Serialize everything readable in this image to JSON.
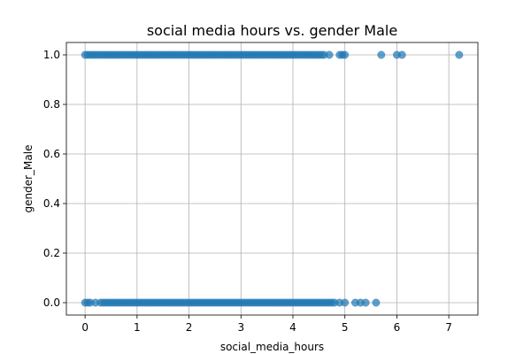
{
  "chart_data": {
    "type": "scatter",
    "title": "social media hours vs. gender Male",
    "xlabel": "social_media_hours",
    "ylabel": "gender_Male",
    "xlim": [
      -0.36,
      7.56
    ],
    "ylim": [
      -0.05,
      1.05
    ],
    "x_ticks": [
      0,
      1,
      2,
      3,
      4,
      5,
      6,
      7
    ],
    "y_ticks": [
      0.0,
      0.2,
      0.4,
      0.6,
      0.8,
      1.0
    ],
    "x_tick_labels": [
      "0",
      "1",
      "2",
      "3",
      "4",
      "5",
      "6",
      "7"
    ],
    "y_tick_labels": [
      "0.0",
      "0.2",
      "0.4",
      "0.6",
      "0.8",
      "1.0"
    ],
    "grid": true,
    "point_color": "#1f77b4",
    "point_alpha": 0.7,
    "series": [
      {
        "values_y": 1,
        "x": [
          0.0,
          0.05,
          0.1,
          0.15,
          0.2,
          0.25,
          0.3,
          0.35,
          0.4,
          0.45,
          0.5,
          0.55,
          0.6,
          0.65,
          0.7,
          0.75,
          0.8,
          0.85,
          0.9,
          0.95,
          1.0,
          1.05,
          1.1,
          1.15,
          1.2,
          1.25,
          1.3,
          1.35,
          1.4,
          1.45,
          1.5,
          1.55,
          1.6,
          1.65,
          1.7,
          1.75,
          1.8,
          1.85,
          1.9,
          1.95,
          2.0,
          2.05,
          2.1,
          2.15,
          2.2,
          2.25,
          2.3,
          2.35,
          2.4,
          2.45,
          2.5,
          2.55,
          2.6,
          2.65,
          2.7,
          2.75,
          2.8,
          2.85,
          2.9,
          2.95,
          3.0,
          3.05,
          3.1,
          3.15,
          3.2,
          3.25,
          3.3,
          3.35,
          3.4,
          3.45,
          3.5,
          3.55,
          3.6,
          3.65,
          3.7,
          3.75,
          3.8,
          3.85,
          3.9,
          3.95,
          4.0,
          4.05,
          4.1,
          4.15,
          4.2,
          4.25,
          4.3,
          4.35,
          4.4,
          4.45,
          4.5,
          4.55,
          4.6,
          4.7,
          4.9,
          4.95,
          5.0,
          5.7,
          6.0,
          6.1,
          7.2
        ]
      },
      {
        "values_y": 0,
        "x": [
          0.0,
          0.05,
          0.1,
          0.2,
          0.3,
          0.35,
          0.4,
          0.45,
          0.5,
          0.55,
          0.6,
          0.65,
          0.7,
          0.75,
          0.8,
          0.85,
          0.9,
          0.95,
          1.0,
          1.05,
          1.1,
          1.15,
          1.2,
          1.25,
          1.3,
          1.35,
          1.4,
          1.45,
          1.5,
          1.55,
          1.6,
          1.65,
          1.7,
          1.75,
          1.8,
          1.85,
          1.9,
          1.95,
          2.0,
          2.05,
          2.1,
          2.15,
          2.2,
          2.25,
          2.3,
          2.35,
          2.4,
          2.45,
          2.5,
          2.55,
          2.6,
          2.65,
          2.7,
          2.75,
          2.8,
          2.85,
          2.9,
          2.95,
          3.0,
          3.05,
          3.1,
          3.15,
          3.2,
          3.25,
          3.3,
          3.35,
          3.4,
          3.45,
          3.5,
          3.55,
          3.6,
          3.65,
          3.7,
          3.75,
          3.8,
          3.85,
          3.9,
          3.95,
          4.0,
          4.05,
          4.1,
          4.15,
          4.2,
          4.25,
          4.3,
          4.35,
          4.4,
          4.45,
          4.5,
          4.55,
          4.6,
          4.65,
          4.7,
          4.75,
          4.8,
          4.9,
          5.0,
          5.2,
          5.3,
          5.4,
          5.6
        ]
      }
    ]
  }
}
